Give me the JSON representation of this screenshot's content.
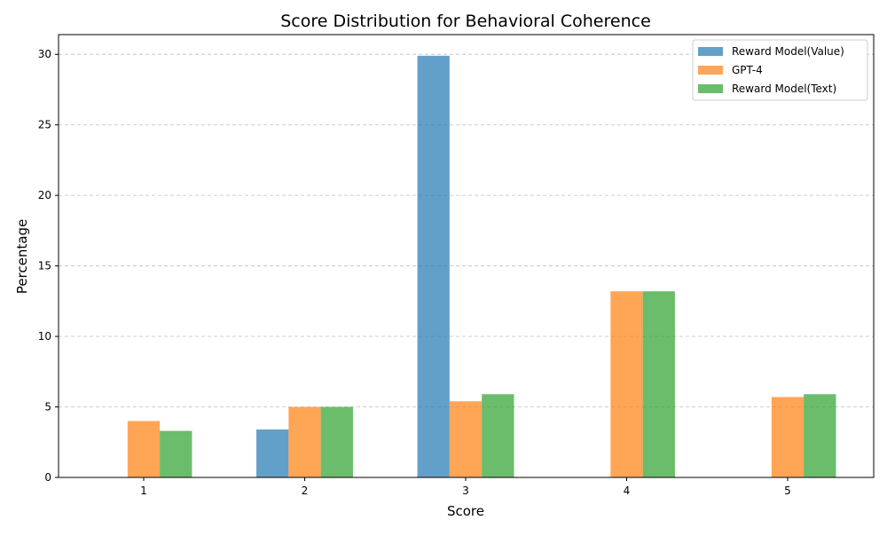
{
  "chart_data": {
    "type": "bar",
    "title": "Score Distribution for Behavioral Coherence",
    "xlabel": "Score",
    "ylabel": "Percentage",
    "categories": [
      "1",
      "2",
      "3",
      "4",
      "5"
    ],
    "series": [
      {
        "name": "Reward Model(Value)",
        "color": "#1f77b4",
        "values": [
          0,
          3.4,
          29.9,
          0,
          0
        ]
      },
      {
        "name": "GPT-4",
        "color": "#ff7f0e",
        "values": [
          4.0,
          5.0,
          5.4,
          13.2,
          5.7
        ]
      },
      {
        "name": "Reward Model(Text)",
        "color": "#2ca02c",
        "values": [
          3.3,
          5.0,
          5.9,
          13.2,
          5.9
        ]
      }
    ],
    "ylim": [
      0,
      31.4
    ],
    "yticks": [
      "0",
      "5",
      "10",
      "15",
      "20",
      "25",
      "30"
    ],
    "bar_opacity": 0.7,
    "grid": "y-axis, dashed",
    "legend_position": "top-right"
  }
}
